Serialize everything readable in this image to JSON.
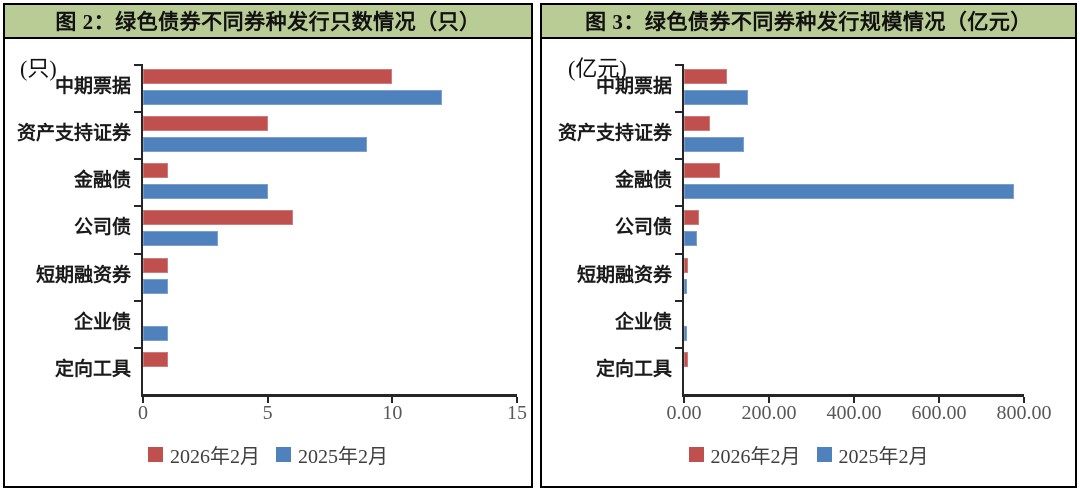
{
  "colors": {
    "header_bg": "#b9cc96",
    "panel_border": "#000000",
    "axis": "#262626",
    "tick_label": "#595959",
    "legend_text": "#3f3f3f",
    "series_red": "#c0504d",
    "series_blue": "#4f81bd"
  },
  "chart_data": [
    {
      "type": "bar",
      "orientation": "horizontal",
      "title": "图 2：绿色债券不同券种发行只数情况（只）",
      "unit_label": "(只)",
      "categories": [
        "中期票据",
        "资产支持证券",
        "金融债",
        "公司债",
        "短期融资券",
        "企业债",
        "定向工具"
      ],
      "series": [
        {
          "name": "2026年2月",
          "color": "#c0504d",
          "edge": "#cf7b79",
          "values": [
            10,
            5,
            1,
            6,
            1,
            0,
            1
          ]
        },
        {
          "name": "2025年2月",
          "color": "#4f81bd",
          "edge": "#7ba0cf",
          "values": [
            12,
            9,
            5,
            3,
            1,
            1,
            0
          ]
        }
      ],
      "xlim": [
        0,
        15
      ],
      "xticks": [
        0,
        5,
        10,
        15
      ],
      "xtick_labels": [
        "0",
        "5",
        "10",
        "15"
      ],
      "grid": false,
      "legend_position": "bottom"
    },
    {
      "type": "bar",
      "orientation": "horizontal",
      "title": "图 3：绿色债券不同券种发行规模情况（亿元）",
      "unit_label": "(亿元)",
      "categories": [
        "中期票据",
        "资产支持证券",
        "金融债",
        "公司债",
        "短期融资券",
        "企业债",
        "定向工具"
      ],
      "series": [
        {
          "name": "2026年2月",
          "color": "#c0504d",
          "edge": "#cf7b79",
          "values": [
            100,
            60,
            85,
            35,
            10,
            0,
            10
          ]
        },
        {
          "name": "2025年2月",
          "color": "#4f81bd",
          "edge": "#7ba0cf",
          "values": [
            150,
            140,
            777,
            30,
            8,
            8,
            0
          ]
        }
      ],
      "xlim": [
        0,
        800
      ],
      "xticks": [
        0,
        200,
        400,
        600,
        800
      ],
      "xtick_labels": [
        "0.00",
        "200.00",
        "400.00",
        "600.00",
        "800.00"
      ],
      "grid": false,
      "legend_position": "bottom"
    }
  ]
}
